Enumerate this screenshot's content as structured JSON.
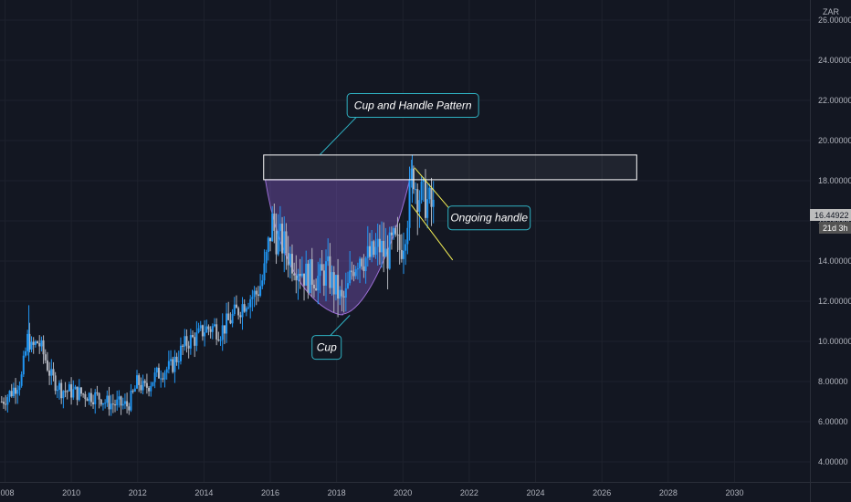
{
  "chart_data": {
    "type": "candlestick",
    "currency": "ZAR",
    "ylim": [
      3,
      27
    ],
    "xlim": [
      2007.85,
      2032.3
    ],
    "y_ticks": [
      "4.00000",
      "6.00000",
      "8.00000",
      "10.00000",
      "12.00000",
      "14.00000",
      "16.00000",
      "18.00000",
      "20.00000",
      "22.00000",
      "24.00000",
      "26.00000"
    ],
    "x_ticks": [
      "2008",
      "2010",
      "2012",
      "2014",
      "2016",
      "2018",
      "2020",
      "2022",
      "2024",
      "2026",
      "2028",
      "2030"
    ],
    "last_price": "16.44922",
    "countdown": "21d 3h",
    "series": [
      {
        "name": "price",
        "points": [
          [
            2007.9,
            7.0
          ],
          [
            2008.2,
            7.5
          ],
          [
            2008.5,
            8.2
          ],
          [
            2008.7,
            10.3
          ],
          [
            2008.8,
            9.6
          ],
          [
            2009.0,
            10.0
          ],
          [
            2009.2,
            9.2
          ],
          [
            2009.4,
            8.2
          ],
          [
            2009.7,
            7.6
          ],
          [
            2010.0,
            7.5
          ],
          [
            2010.3,
            7.4
          ],
          [
            2010.6,
            7.3
          ],
          [
            2010.9,
            7.2
          ],
          [
            2011.0,
            7.0
          ],
          [
            2011.2,
            6.9
          ],
          [
            2011.5,
            6.85
          ],
          [
            2011.7,
            6.8
          ],
          [
            2011.85,
            7.3
          ],
          [
            2012.0,
            8.0
          ],
          [
            2012.2,
            7.6
          ],
          [
            2012.5,
            8.2
          ],
          [
            2012.7,
            8.5
          ],
          [
            2013.0,
            8.7
          ],
          [
            2013.3,
            9.5
          ],
          [
            2013.5,
            10.0
          ],
          [
            2013.8,
            10.2
          ],
          [
            2014.0,
            10.6
          ],
          [
            2014.3,
            10.7
          ],
          [
            2014.5,
            10.5
          ],
          [
            2014.8,
            11.1
          ],
          [
            2015.0,
            11.5
          ],
          [
            2015.3,
            12.1
          ],
          [
            2015.6,
            12.4
          ],
          [
            2015.8,
            13.2
          ],
          [
            2015.95,
            14.8
          ],
          [
            2016.05,
            16.0
          ],
          [
            2016.15,
            15.3
          ],
          [
            2016.4,
            14.8
          ],
          [
            2016.6,
            14.2
          ],
          [
            2016.9,
            13.7
          ],
          [
            2017.1,
            13.2
          ],
          [
            2017.3,
            13.3
          ],
          [
            2017.5,
            13.1
          ],
          [
            2017.7,
            13.6
          ],
          [
            2017.9,
            12.8
          ],
          [
            2018.05,
            12.4
          ],
          [
            2018.15,
            11.9
          ],
          [
            2018.3,
            12.3
          ],
          [
            2018.5,
            13.8
          ],
          [
            2018.7,
            14.4
          ],
          [
            2018.9,
            14.1
          ],
          [
            2019.1,
            14.3
          ],
          [
            2019.3,
            14.7
          ],
          [
            2019.5,
            14.2
          ],
          [
            2019.7,
            14.9
          ],
          [
            2019.9,
            14.6
          ],
          [
            2020.0,
            15.0
          ],
          [
            2020.15,
            16.5
          ],
          [
            2020.3,
            18.6
          ],
          [
            2020.4,
            17.6
          ],
          [
            2020.55,
            17.2
          ],
          [
            2020.7,
            17.0
          ],
          [
            2020.85,
            16.7
          ],
          [
            2020.95,
            16.45
          ]
        ]
      }
    ],
    "zone": {
      "y_from": 18.05,
      "y_to": 19.28,
      "x_from": 2015.8,
      "x_to": 2027.05
    },
    "cup": {
      "x_from": 2015.85,
      "x_to": 2020.2,
      "y_top": 18.05,
      "y_bottom": 11.35
    },
    "handle_lines": [
      {
        "x1": 2020.35,
        "y1": 18.65,
        "x2": 2021.95,
        "y2": 15.55
      },
      {
        "x1": 2020.25,
        "y1": 16.8,
        "x2": 2021.5,
        "y2": 14.05
      }
    ],
    "annotations": [
      {
        "label": "Cup and Handle Pattern",
        "x": 2020.3,
        "y": 21.75,
        "anchor": [
          2017.5,
          19.3
        ]
      },
      {
        "label": "Ongoing handle",
        "x": 2022.6,
        "y": 16.15,
        "anchor": [
          2022.0,
          16.4
        ]
      },
      {
        "label": "Cup",
        "x": 2017.7,
        "y": 9.7,
        "anchor": [
          2018.4,
          11.3
        ]
      }
    ],
    "colors": {
      "up": "#2196f3",
      "down": "#b2b5be",
      "zone_border": "#ffffff",
      "cup_fill": "#7e57c2",
      "handle": "#f5f056",
      "annotation_border": "#2fb1c2",
      "annotation_bg": "#131722",
      "price_tag_bg": "#bdbdbd",
      "timer_bg": "#545454"
    }
  }
}
